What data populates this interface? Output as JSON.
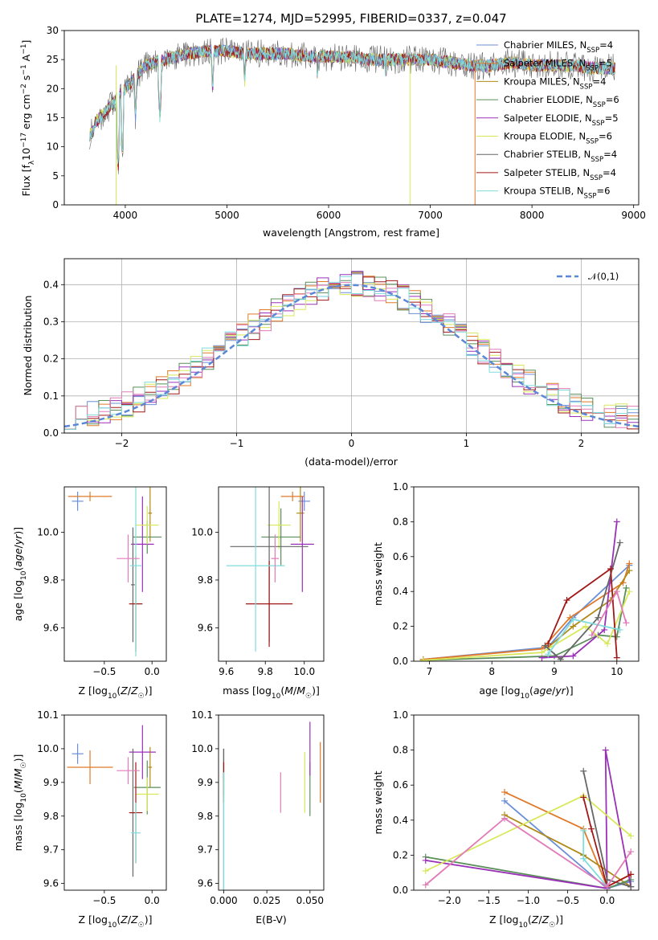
{
  "figure_title": "PLATE=1274, MJD=52995, FIBERID=0337, z=0.047",
  "colors": [
    "#6b8fd6",
    "#e07a2a",
    "#b08a17",
    "#5a8f5a",
    "#9b30b8",
    "#d8e85a",
    "#666666",
    "#a01818",
    "#7fdcdc",
    "#e07bb7"
  ],
  "models": [
    {
      "label": "Chabrier MILES, N",
      "sub": "SSP",
      "suffix": "=4",
      "color": "#6b8fd6"
    },
    {
      "label": "Salpeter MILES, N",
      "sub": "SSP",
      "suffix": "=5",
      "color": "#e07a2a"
    },
    {
      "label": "Kroupa MILES, N",
      "sub": "SSP",
      "suffix": "=4",
      "color": "#b08a17"
    },
    {
      "label": "Chabrier ELODIE, N",
      "sub": "SSP",
      "suffix": "=6",
      "color": "#5a8f5a"
    },
    {
      "label": "Salpeter ELODIE, N",
      "sub": "SSP",
      "suffix": "=5",
      "color": "#9b30b8"
    },
    {
      "label": "Kroupa ELODIE, N",
      "sub": "SSP",
      "suffix": "=6",
      "color": "#d8e85a"
    },
    {
      "label": "Chabrier STELIB, N",
      "sub": "SSP",
      "suffix": "=4",
      "color": "#666666"
    },
    {
      "label": "Salpeter STELIB, N",
      "sub": "SSP",
      "suffix": "=4",
      "color": "#a01818"
    },
    {
      "label": "Kroupa STELIB, N",
      "sub": "SSP",
      "suffix": "=6",
      "color": "#7fdcdc"
    }
  ],
  "chart_data": [
    {
      "id": "spectrum",
      "type": "line",
      "xlabel": "wavelength [Angstrom, rest frame]",
      "ylabel": "Flux [f_λ 10^-17 erg cm^-2 s^-1 A^-1]",
      "xlim": [
        3400,
        9050
      ],
      "ylim": [
        0,
        30
      ],
      "xticks": [
        "4000",
        "5000",
        "6000",
        "7000",
        "8000",
        "9000"
      ],
      "yticks": [
        "0",
        "5",
        "10",
        "15",
        "20",
        "25",
        "30"
      ],
      "continuum": {
        "x": [
          3650,
          3700,
          3800,
          3900,
          4000,
          4100,
          4200,
          4400,
          4600,
          4800,
          5000,
          5200,
          5400,
          5600,
          5800,
          6000,
          6200,
          6400,
          6600,
          6800,
          7000,
          7200,
          7400,
          7600,
          7800,
          8000,
          8200,
          8400,
          8600,
          8800
        ],
        "y": [
          13,
          14,
          16,
          18,
          20,
          22,
          24,
          25,
          26,
          26.5,
          26.5,
          26,
          26,
          26,
          25.5,
          25.5,
          25.5,
          25,
          25,
          25,
          25,
          24.5,
          24,
          24,
          24.5,
          24,
          24,
          24,
          23.5,
          23.5
        ]
      },
      "dips": [
        {
          "x": 3930,
          "y": 6
        },
        {
          "x": 3970,
          "y": 8
        },
        {
          "x": 4100,
          "y": 15
        },
        {
          "x": 4340,
          "y": 15
        },
        {
          "x": 4860,
          "y": 20
        },
        {
          "x": 5175,
          "y": 21
        },
        {
          "x": 5890,
          "y": 22
        },
        {
          "x": 6563,
          "y": 22
        }
      ],
      "drops": [
        {
          "x": 3910,
          "color": "#d8e85a"
        },
        {
          "x": 6800,
          "color": "#d8e85a"
        },
        {
          "x": 7440,
          "color": "#e07a2a"
        }
      ],
      "grid": false,
      "legend": "top-right"
    },
    {
      "id": "residuals",
      "type": "histogram",
      "xlabel": "(data-model)/error",
      "ylabel": "Normed distribution",
      "xlim": [
        -2.5,
        2.5
      ],
      "ylim": [
        0,
        0.47
      ],
      "xticks": [
        "−2",
        "−1",
        "0",
        "1",
        "2"
      ],
      "yticks": [
        "0.0",
        "0.1",
        "0.2",
        "0.3",
        "0.4"
      ],
      "bin_width": 0.1,
      "reference_label": "𝒩(0,1)",
      "reference_color": "#5b87d6",
      "grid": true,
      "legend": "top-right"
    },
    {
      "id": "age_vs_Z",
      "type": "scatter",
      "xlabel": "Z [log10(Z/Z☉)]",
      "ylabel": "age [log10(age/yr)]",
      "xlim": [
        -0.92,
        0.15
      ],
      "ylim": [
        9.46,
        10.19
      ],
      "xticks": [
        "−0.5",
        "0.0"
      ],
      "yticks": [
        "9.6",
        "9.8",
        "10.0"
      ],
      "points": [
        {
          "x": -0.78,
          "y": 10.13,
          "xerr": 0.06,
          "yerr": 0.04,
          "color": "#6b8fd6"
        },
        {
          "x": -0.65,
          "y": 10.15,
          "xerr": 0.23,
          "yerr": 0.02,
          "color": "#e07a2a"
        },
        {
          "x": -0.02,
          "y": 10.08,
          "xerr": 0.02,
          "yerr": 0.12,
          "color": "#b08a17"
        },
        {
          "x": -0.05,
          "y": 9.98,
          "xerr": 0.15,
          "yerr": 0.07,
          "color": "#5a8f5a"
        },
        {
          "x": -0.1,
          "y": 9.95,
          "xerr": 0.12,
          "yerr": 0.2,
          "color": "#9b30b8"
        },
        {
          "x": -0.05,
          "y": 10.03,
          "xerr": 0.12,
          "yerr": 0.08,
          "color": "#d8e85a"
        },
        {
          "x": -0.2,
          "y": 9.78,
          "xerr": 0.02,
          "yerr": 0.24,
          "color": "#666666"
        },
        {
          "x": -0.17,
          "y": 9.7,
          "xerr": 0.07,
          "yerr": 0.2,
          "color": "#a01818"
        },
        {
          "x": -0.17,
          "y": 9.86,
          "xerr": 0.06,
          "yerr": 0.38,
          "color": "#7fdcdc"
        },
        {
          "x": -0.25,
          "y": 9.89,
          "xerr": 0.12,
          "yerr": 0.1,
          "color": "#e07bb7"
        }
      ]
    },
    {
      "id": "age_vs_mass",
      "type": "scatter",
      "xlabel": "mass [log10(M/M☉)]",
      "ylabel": "",
      "xlim": [
        9.56,
        10.1
      ],
      "ylim": [
        9.46,
        10.19
      ],
      "xticks": [
        "9.6",
        "9.8",
        "10.0"
      ],
      "yticks": [
        "9.6",
        "9.8",
        "10.0"
      ],
      "points": [
        {
          "x": 10.0,
          "y": 10.13,
          "xerr": 0.03,
          "yerr": 0.04,
          "color": "#6b8fd6"
        },
        {
          "x": 9.94,
          "y": 10.15,
          "xerr": 0.06,
          "yerr": 0.02,
          "color": "#e07a2a"
        },
        {
          "x": 9.98,
          "y": 10.08,
          "xerr": 0.02,
          "yerr": 0.12,
          "color": "#b08a17"
        },
        {
          "x": 9.88,
          "y": 9.98,
          "xerr": 0.1,
          "yerr": 0.12,
          "color": "#5a8f5a"
        },
        {
          "x": 9.99,
          "y": 9.95,
          "xerr": 0.06,
          "yerr": 0.2,
          "color": "#9b30b8"
        },
        {
          "x": 9.87,
          "y": 10.03,
          "xerr": 0.06,
          "yerr": 0.1,
          "color": "#d8e85a"
        },
        {
          "x": 9.82,
          "y": 9.94,
          "xerr": 0.2,
          "yerr": 0.4,
          "color": "#666666"
        },
        {
          "x": 9.82,
          "y": 9.7,
          "xerr": 0.12,
          "yerr": 0.18,
          "color": "#a01818"
        },
        {
          "x": 9.75,
          "y": 9.86,
          "xerr": 0.15,
          "yerr": 0.36,
          "color": "#7fdcdc"
        },
        {
          "x": 9.85,
          "y": 9.89,
          "xerr": 0.02,
          "yerr": 0.1,
          "color": "#e07bb7"
        }
      ]
    },
    {
      "id": "massweight_vs_age",
      "type": "line",
      "xlabel": "age [log10(age/yr)]",
      "ylabel": "mass weight",
      "xlim": [
        6.75,
        10.35
      ],
      "ylim": [
        0,
        1
      ],
      "xticks": [
        "7",
        "8",
        "9",
        "10"
      ],
      "yticks": [
        "0.0",
        "0.2",
        "0.4",
        "0.6",
        "0.8",
        "1.0"
      ],
      "series": [
        {
          "color": "#6b8fd6",
          "x": [
            6.9,
            8.9,
            9.3,
            10.2
          ],
          "y": [
            0.01,
            0.08,
            0.25,
            0.55
          ]
        },
        {
          "color": "#e07a2a",
          "x": [
            6.9,
            8.8,
            9.25,
            10.1,
            10.2
          ],
          "y": [
            0.01,
            0.07,
            0.25,
            0.45,
            0.56
          ]
        },
        {
          "color": "#b08a17",
          "x": [
            8.9,
            9.3,
            9.9,
            10.2
          ],
          "y": [
            0.08,
            0.2,
            0.35,
            0.52
          ]
        },
        {
          "color": "#5a8f5a",
          "x": [
            6.9,
            9.0,
            9.7,
            10.0,
            10.15
          ],
          "y": [
            0.005,
            0.03,
            0.15,
            0.14,
            0.42
          ]
        },
        {
          "color": "#9b30b8",
          "x": [
            8.8,
            9.3,
            9.8,
            10.0
          ],
          "y": [
            0.02,
            0.03,
            0.18,
            0.8
          ]
        },
        {
          "color": "#d8e85a",
          "x": [
            6.9,
            8.8,
            9.5,
            9.85,
            10.2
          ],
          "y": [
            0.005,
            0.05,
            0.2,
            0.1,
            0.4
          ]
        },
        {
          "color": "#666666",
          "x": [
            8.85,
            9.1,
            9.7,
            10.05
          ],
          "y": [
            0.09,
            0.01,
            0.25,
            0.68
          ]
        },
        {
          "color": "#a01818",
          "x": [
            8.9,
            9.2,
            9.9,
            10.0
          ],
          "y": [
            0.1,
            0.35,
            0.53,
            0.02
          ]
        },
        {
          "color": "#7fdcdc",
          "x": [
            8.9,
            9.3,
            10.05
          ],
          "y": [
            0.04,
            0.24,
            0.18
          ]
        },
        {
          "color": "#e07bb7",
          "x": [
            9.6,
            10.0,
            10.15
          ],
          "y": [
            0.15,
            0.4,
            0.22
          ]
        }
      ]
    },
    {
      "id": "mass_vs_Z",
      "type": "scatter",
      "xlabel": "Z [log10(Z/Z☉)]",
      "ylabel": "mass [log10(M/M☉)]",
      "xlim": [
        -0.92,
        0.15
      ],
      "ylim": [
        9.58,
        10.1
      ],
      "xticks": [
        "−0.5",
        "0.0"
      ],
      "yticks": [
        "9.6",
        "9.7",
        "9.8",
        "9.9",
        "10.0",
        "10.1"
      ],
      "points": [
        {
          "x": -0.78,
          "y": 9.985,
          "xerr": 0.06,
          "yerr": 0.03,
          "color": "#6b8fd6"
        },
        {
          "x": -0.65,
          "y": 9.945,
          "xerr": 0.24,
          "yerr": 0.05,
          "color": "#e07a2a"
        },
        {
          "x": -0.02,
          "y": 9.945,
          "xerr": 0.02,
          "yerr": 0.06,
          "color": "#b08a17"
        },
        {
          "x": -0.05,
          "y": 9.885,
          "xerr": 0.14,
          "yerr": 0.08,
          "color": "#5a8f5a"
        },
        {
          "x": -0.1,
          "y": 9.99,
          "xerr": 0.14,
          "yerr": 0.08,
          "color": "#9b30b8"
        },
        {
          "x": -0.05,
          "y": 9.865,
          "xerr": 0.12,
          "yerr": 0.05,
          "color": "#d8e85a"
        },
        {
          "x": -0.2,
          "y": 9.81,
          "xerr": 0.03,
          "yerr": 0.19,
          "color": "#666666"
        },
        {
          "x": -0.17,
          "y": 9.81,
          "xerr": 0.07,
          "yerr": 0.15,
          "color": "#a01818"
        },
        {
          "x": -0.17,
          "y": 9.75,
          "xerr": 0.05,
          "yerr": 0.09,
          "color": "#7fdcdc"
        },
        {
          "x": -0.25,
          "y": 9.935,
          "xerr": 0.12,
          "yerr": 0.04,
          "color": "#e07bb7"
        }
      ]
    },
    {
      "id": "mass_vs_ebv",
      "type": "scatter",
      "xlabel": "E(B-V)",
      "ylabel": "",
      "xlim": [
        -0.003,
        0.058
      ],
      "ylim": [
        9.58,
        10.1
      ],
      "xticks": [
        "0.000",
        "0.025",
        "0.050"
      ],
      "yticks": [
        "9.6",
        "9.7",
        "9.8",
        "9.9",
        "10.0",
        "10.1"
      ],
      "points": [
        {
          "x": 0.0,
          "y": 9.95,
          "yerr": 0.05,
          "color": "#6b8fd6"
        },
        {
          "x": 0.056,
          "y": 9.93,
          "yerr": 0.09,
          "color": "#e07a2a"
        },
        {
          "x": 0.0,
          "y": 9.93,
          "yerr": 0.07,
          "color": "#b08a17"
        },
        {
          "x": 0.05,
          "y": 9.88,
          "yerr": 0.08,
          "color": "#5a8f5a"
        },
        {
          "x": 0.05,
          "y": 10.0,
          "yerr": 0.08,
          "color": "#9b30b8"
        },
        {
          "x": 0.047,
          "y": 9.9,
          "yerr": 0.09,
          "color": "#d8e85a"
        },
        {
          "x": 0.0,
          "y": 9.78,
          "yerr": 0.22,
          "color": "#666666"
        },
        {
          "x": 0.0,
          "y": 9.9,
          "yerr": 0.06,
          "color": "#a01818"
        },
        {
          "x": 0.0,
          "y": 9.75,
          "yerr": 0.18,
          "color": "#7fdcdc"
        },
        {
          "x": 0.033,
          "y": 9.87,
          "yerr": 0.06,
          "color": "#e07bb7"
        }
      ]
    },
    {
      "id": "massweight_vs_Z",
      "type": "line",
      "xlabel": "Z [log10(Z/Z☉)]",
      "ylabel": "mass weight",
      "xlim": [
        -2.45,
        0.4
      ],
      "ylim": [
        0,
        1
      ],
      "xticks": [
        "−2.0",
        "−1.5",
        "−1.0",
        "−0.5",
        "0.0"
      ],
      "yticks": [
        "0.0",
        "0.2",
        "0.4",
        "0.6",
        "0.8",
        "1.0"
      ],
      "series": [
        {
          "color": "#6b8fd6",
          "x": [
            -1.3,
            0.0,
            0.3
          ],
          "y": [
            0.51,
            0.01,
            0.05
          ]
        },
        {
          "color": "#e07a2a",
          "x": [
            -1.3,
            -0.3,
            0.0,
            0.3
          ],
          "y": [
            0.56,
            0.35,
            0.02,
            0.09
          ]
        },
        {
          "color": "#b08a17",
          "x": [
            -1.3,
            -0.3,
            0.3
          ],
          "y": [
            0.43,
            0.2,
            0.02
          ]
        },
        {
          "color": "#5a8f5a",
          "x": [
            -2.3,
            0.0,
            0.3
          ],
          "y": [
            0.19,
            0.01,
            0.06
          ]
        },
        {
          "color": "#9b30b8",
          "x": [
            -2.3,
            0.0,
            -0.02,
            0.3
          ],
          "y": [
            0.17,
            0.01,
            0.8,
            0.02
          ]
        },
        {
          "color": "#d8e85a",
          "x": [
            -2.3,
            -0.3,
            0.3
          ],
          "y": [
            0.11,
            0.54,
            0.31
          ]
        },
        {
          "color": "#666666",
          "x": [
            -0.3,
            0.0,
            0.3
          ],
          "y": [
            0.68,
            0.06,
            0.02
          ]
        },
        {
          "color": "#a01818",
          "x": [
            -0.3,
            -0.2,
            0.0,
            0.3
          ],
          "y": [
            0.53,
            0.35,
            0.02,
            0.09
          ]
        },
        {
          "color": "#7fdcdc",
          "x": [
            -0.3,
            -0.3,
            0.0
          ],
          "y": [
            0.34,
            0.18,
            0.02
          ]
        },
        {
          "color": "#e07bb7",
          "x": [
            -2.3,
            -1.3,
            0.0,
            0.3
          ],
          "y": [
            0.03,
            0.41,
            0.02,
            0.22
          ]
        }
      ]
    }
  ]
}
